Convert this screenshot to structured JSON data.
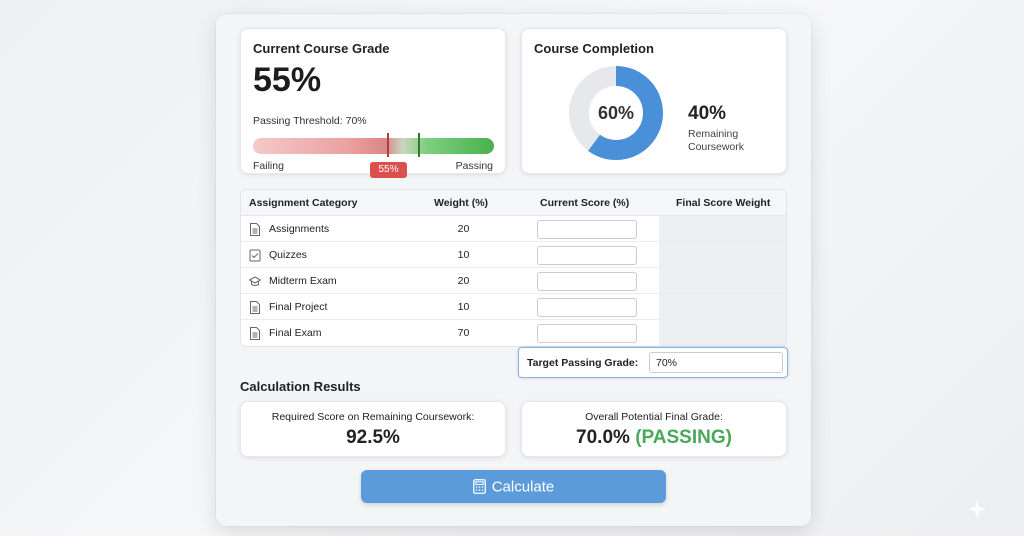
{
  "grade_card": {
    "title": "Current Course Grade",
    "current_grade": "55%",
    "threshold_text": "Passing Threshold: 70%",
    "bar_left_label": "Failing",
    "bar_right_label": "Passing",
    "marker_badge": "55%",
    "current_value": 55,
    "passing_value": 70
  },
  "completion_card": {
    "title": "Course Completion",
    "completed": "60%",
    "completed_fraction": 0.6,
    "remaining": "40%",
    "remaining_label": "Remaining Coursework",
    "colors": {
      "filled": "#4a90d9",
      "empty": "#e6e8ec"
    }
  },
  "table": {
    "headers": [
      "Assignment Category",
      "Weight (%)",
      "Current Score (%)",
      "Final Score Weight"
    ],
    "rows": [
      {
        "label": "Assignments",
        "weight": "20",
        "icon": "document-icon"
      },
      {
        "label": "Quizzes",
        "weight": "10",
        "icon": "checklist-icon"
      },
      {
        "label": "Midterm Exam",
        "weight": "20",
        "icon": "graduation-cap-icon"
      },
      {
        "label": "Final Project",
        "weight": "10",
        "icon": "document-icon"
      },
      {
        "label": "Final Exam",
        "weight": "70",
        "icon": "document-icon"
      }
    ]
  },
  "target": {
    "label": "Target Passing Grade:",
    "value": "70%"
  },
  "results": {
    "title": "Calculation Results",
    "required_label": "Required Score on Remaining Coursework:",
    "required_value": "92.5%",
    "overall_label": "Overall Potential Final Grade:",
    "overall_value": "70.0%",
    "overall_status": "(PASSING)"
  },
  "button": {
    "label": "Calculate",
    "icon": "calculator-icon"
  }
}
